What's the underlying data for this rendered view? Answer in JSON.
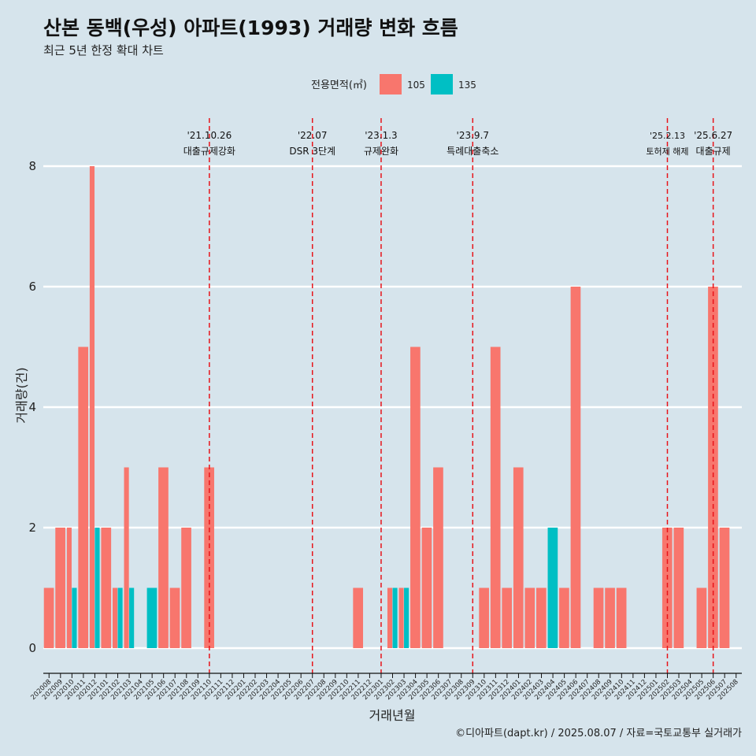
{
  "title": "산본 동백(우성) 아파트(1993) 거래량 변화 흐름",
  "subtitle": "최근 5년 한정 확대 차트",
  "caption": "©디아파트(dapt.kr) / 2025.08.07 / 자료=국토교통부 실거래가",
  "legend": {
    "title": "전용면적(㎡)",
    "items": [
      {
        "label": "105",
        "color": "#F8766D"
      },
      {
        "label": "135",
        "color": "#00BFC4"
      }
    ]
  },
  "chart_data": {
    "type": "bar",
    "xlabel": "거래년월",
    "ylabel": "거래량(건)",
    "ylim": [
      0,
      8
    ],
    "yticks": [
      0,
      2,
      4,
      6,
      8
    ],
    "grid": true,
    "legend_position": "top",
    "categories": [
      "202008",
      "202009",
      "202010",
      "202011",
      "202012",
      "202101",
      "202102",
      "202103",
      "202104",
      "202105",
      "202106",
      "202107",
      "202108",
      "202109",
      "202110",
      "202111",
      "202112",
      "202201",
      "202202",
      "202203",
      "202204",
      "202205",
      "202206",
      "202207",
      "202208",
      "202209",
      "202210",
      "202211",
      "202212",
      "202301",
      "202302",
      "202303",
      "202304",
      "202305",
      "202306",
      "202307",
      "202308",
      "202309",
      "202310",
      "202311",
      "202312",
      "202401",
      "202402",
      "202403",
      "202404",
      "202405",
      "202406",
      "202407",
      "202408",
      "202409",
      "202410",
      "202411",
      "202412",
      "202501",
      "202502",
      "202503",
      "202504",
      "202505",
      "202506",
      "202507",
      "202508"
    ],
    "series": [
      {
        "name": "105",
        "color": "#F8766D",
        "values": [
          1,
          2,
          2,
          5,
          8,
          2,
          1,
          3,
          0,
          0,
          3,
          1,
          2,
          0,
          3,
          0,
          0,
          0,
          0,
          0,
          0,
          0,
          0,
          0,
          0,
          0,
          0,
          1,
          0,
          0,
          1,
          1,
          5,
          2,
          3,
          0,
          0,
          0,
          1,
          5,
          1,
          3,
          1,
          1,
          0,
          1,
          6,
          0,
          1,
          1,
          1,
          0,
          0,
          0,
          2,
          2,
          0,
          1,
          6,
          2,
          0
        ]
      },
      {
        "name": "135",
        "color": "#00BFC4",
        "values": [
          0,
          0,
          1,
          0,
          2,
          0,
          1,
          1,
          0,
          1,
          0,
          0,
          0,
          0,
          0,
          0,
          0,
          0,
          0,
          0,
          0,
          0,
          0,
          0,
          0,
          0,
          0,
          0,
          0,
          0,
          1,
          1,
          0,
          0,
          0,
          0,
          0,
          0,
          0,
          0,
          0,
          0,
          0,
          0,
          2,
          0,
          0,
          0,
          0,
          0,
          0,
          0,
          0,
          0,
          0,
          0,
          0,
          0,
          0,
          0,
          0
        ]
      }
    ],
    "annotations": [
      {
        "month": "202110",
        "date": "'21.10.26",
        "label": "대출규제강화"
      },
      {
        "month": "202207",
        "date": "'22.07",
        "label": "DSR 3단계"
      },
      {
        "month": "202301",
        "date": "'23.1.3",
        "label": "규제완화"
      },
      {
        "month": "202309",
        "date": "'23.9.7",
        "label": "특례대출축소"
      },
      {
        "month": "202502",
        "date": "'25.2.13",
        "label": "토허제 해제"
      },
      {
        "month": "202506",
        "date": "'25.6.27",
        "label": "대출규제"
      }
    ]
  }
}
